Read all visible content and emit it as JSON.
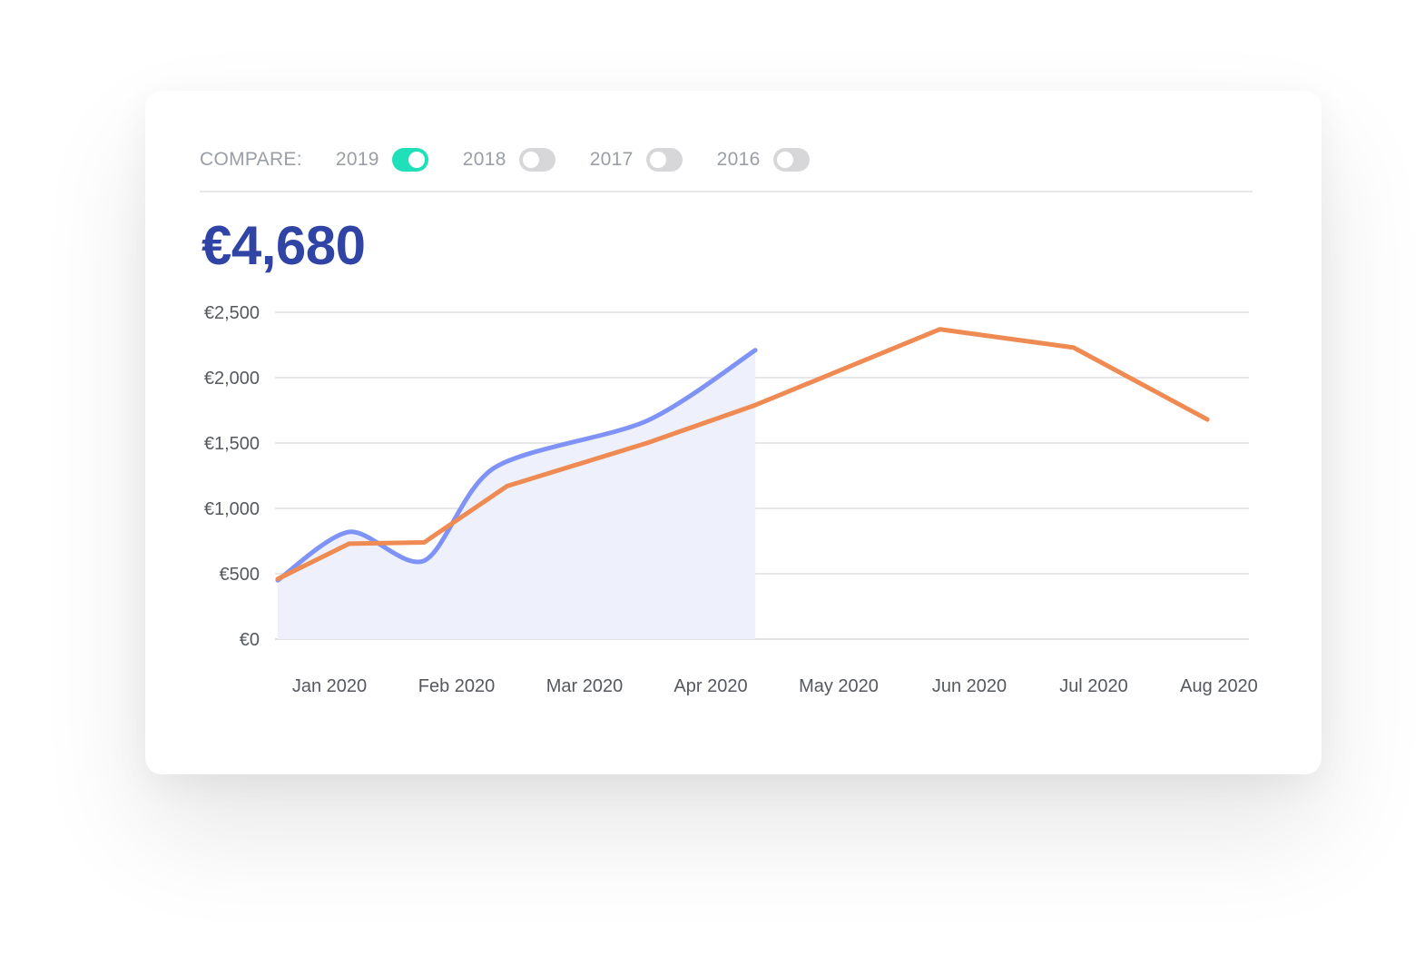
{
  "compare": {
    "label": "COMPARE:",
    "years": [
      {
        "label": "2019",
        "enabled": true
      },
      {
        "label": "2018",
        "enabled": false
      },
      {
        "label": "2017",
        "enabled": false
      },
      {
        "label": "2016",
        "enabled": false
      }
    ]
  },
  "total_value": "€4,680",
  "colors": {
    "accent_total": "#2f44a4",
    "toggle_on": "#1fe0b8",
    "toggle_off": "#d7d7d9",
    "series_current": "#7f93f7",
    "series_current_fill": "#eef0fc",
    "series_compare": "#ee8a52"
  },
  "chart_data": {
    "type": "line",
    "categories": [
      "Jan 2020",
      "Feb 2020",
      "Mar 2020",
      "Apr 2020",
      "May 2020",
      "Jun 2020",
      "Jul 2020",
      "Aug 2020"
    ],
    "y_ticks": [
      "€0",
      "€500",
      "€1,000",
      "€1,500",
      "€2,000",
      "€2,500"
    ],
    "ylim": [
      0,
      2500
    ],
    "grid": true,
    "series": [
      {
        "key": "current",
        "area_fill": true,
        "points": [
          {
            "x": 0.0,
            "y": 450
          },
          {
            "x": 0.56,
            "y": 820
          },
          {
            "x": 1.15,
            "y": 600
          },
          {
            "x": 1.7,
            "y": 1310
          },
          {
            "x": 2.9,
            "y": 1670
          },
          {
            "x": 3.75,
            "y": 2210
          }
        ]
      },
      {
        "key": "compare",
        "area_fill": false,
        "points": [
          {
            "x": 0.0,
            "y": 460
          },
          {
            "x": 0.56,
            "y": 730
          },
          {
            "x": 1.15,
            "y": 740
          },
          {
            "x": 1.8,
            "y": 1170
          },
          {
            "x": 2.9,
            "y": 1500
          },
          {
            "x": 3.75,
            "y": 1790
          },
          {
            "x": 5.2,
            "y": 2370
          },
          {
            "x": 6.25,
            "y": 2230
          },
          {
            "x": 7.3,
            "y": 1680
          }
        ]
      }
    ]
  }
}
